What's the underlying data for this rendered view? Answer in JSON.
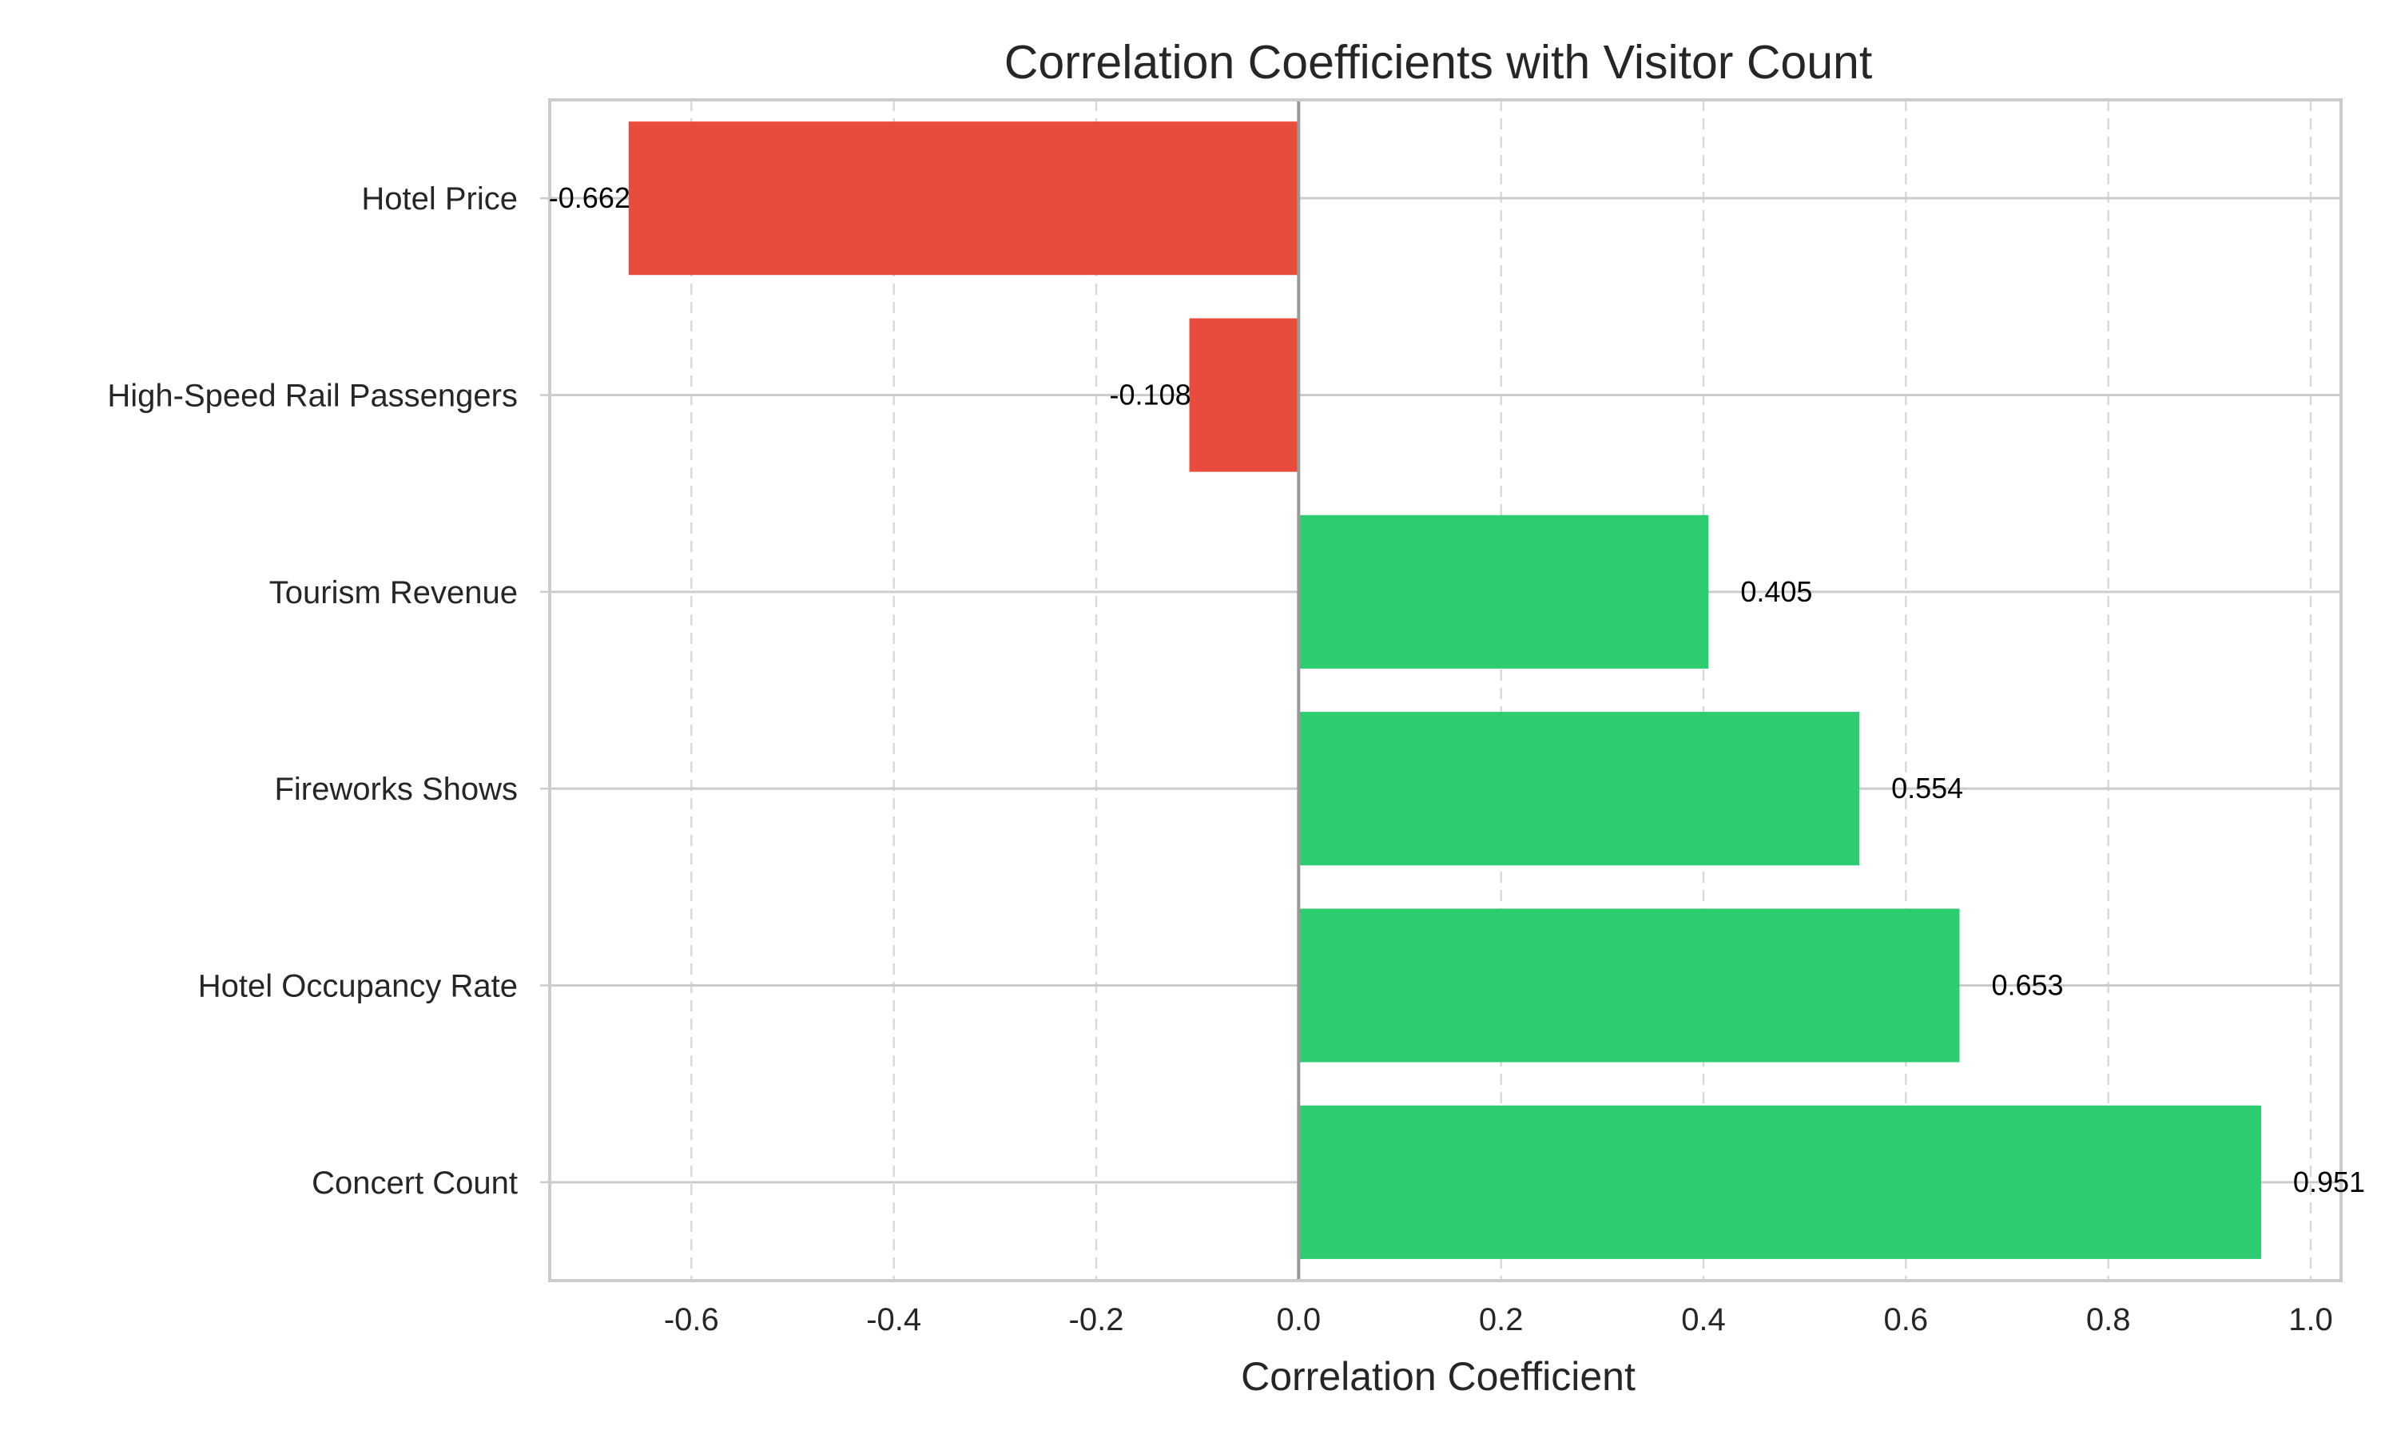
{
  "chart_data": {
    "type": "bar",
    "orientation": "horizontal",
    "title": "Correlation Coefficients with Visitor Count",
    "xlabel": "Correlation Coefficient",
    "ylabel": "",
    "categories": [
      "Concert Count",
      "Hotel Occupancy Rate",
      "Fireworks Shows",
      "Tourism Revenue",
      "High-Speed Rail Passengers",
      "Hotel Price"
    ],
    "values": [
      0.951,
      0.653,
      0.554,
      0.405,
      -0.108,
      -0.662
    ],
    "value_labels": [
      "0.951",
      "0.653",
      "0.554",
      "0.405",
      "-0.108",
      "-0.662"
    ],
    "xlim": [
      -0.74,
      1.03
    ],
    "xticks": [
      -0.6,
      -0.4,
      -0.2,
      0.0,
      0.2,
      0.4,
      0.6,
      0.8,
      1.0
    ],
    "xtick_labels": [
      "-0.6",
      "-0.4",
      "-0.2",
      "0.0",
      "0.2",
      "0.4",
      "0.6",
      "0.8",
      "1.0"
    ],
    "grid": "x dashed",
    "reference_line_x": 0,
    "colors": {
      "positive": "#2ecc71",
      "negative": "#e74c3c"
    }
  }
}
